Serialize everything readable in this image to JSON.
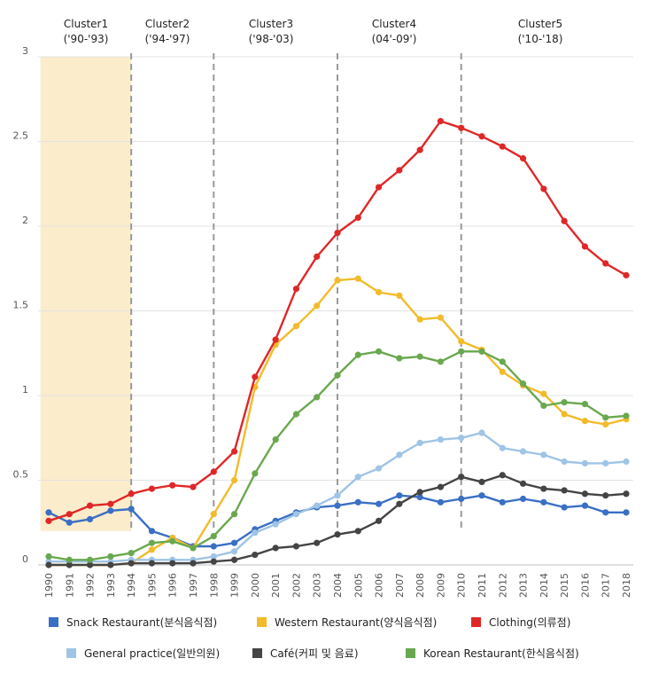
{
  "chart_data": {
    "type": "line",
    "title": "",
    "xlabel": "",
    "ylabel": "",
    "x": [
      "1990",
      "1991",
      "1992",
      "1993",
      "1994",
      "1995",
      "1996",
      "1997",
      "1998",
      "1999",
      "2000",
      "2001",
      "2002",
      "2003",
      "2004",
      "2005",
      "2006",
      "2007",
      "2008",
      "2009",
      "2010",
      "2011",
      "2012",
      "2013",
      "2014",
      "2015",
      "2016",
      "2017",
      "2018"
    ],
    "ylim": [
      0,
      3
    ],
    "yticks": [
      "0",
      "0.5",
      "1",
      "1.5",
      "2",
      "2.5",
      "3"
    ],
    "grid": true,
    "legend_position": "bottom",
    "clusters": [
      {
        "name": "Cluster1",
        "range": "('90-'93)",
        "start": "1990",
        "end": "1994",
        "highlight": true
      },
      {
        "name": "Cluster2",
        "range": "('94-'97)",
        "start": "1994",
        "end": "1998"
      },
      {
        "name": "Cluster3",
        "range": "('98-'03)",
        "start": "1998",
        "end": "2004"
      },
      {
        "name": "Cluster4",
        "range": "(04'-09')",
        "start": "2004",
        "end": "2010"
      },
      {
        "name": "Cluster5",
        "range": "('10-'18)",
        "start": "2010",
        "end": "2018"
      }
    ],
    "highlight_color": "#fbeccb",
    "series": [
      {
        "name": "Snack Restaurant(분식음식점)",
        "color": "#3a6fc4",
        "values": [
          0.31,
          0.25,
          0.27,
          0.32,
          0.33,
          0.2,
          0.16,
          0.11,
          0.11,
          0.13,
          0.21,
          0.26,
          0.31,
          0.34,
          0.35,
          0.37,
          0.36,
          0.41,
          0.4,
          0.37,
          0.39,
          0.41,
          0.37,
          0.39,
          0.37,
          0.34,
          0.35,
          0.31,
          0.31
        ]
      },
      {
        "name": "Western Restaurant(양식음식점)",
        "color": "#f2bb2a",
        "values": [
          0.0,
          0.0,
          0.0,
          0.0,
          0.01,
          0.09,
          0.16,
          0.1,
          0.3,
          0.5,
          1.05,
          1.3,
          1.41,
          1.53,
          1.68,
          1.69,
          1.61,
          1.59,
          1.45,
          1.46,
          1.32,
          1.27,
          1.14,
          1.06,
          1.01,
          0.89,
          0.85,
          0.83,
          0.86
        ]
      },
      {
        "name": "Clothing(의류점)",
        "color": "#e02727",
        "values": [
          0.26,
          0.3,
          0.35,
          0.36,
          0.42,
          0.45,
          0.47,
          0.46,
          0.55,
          0.67,
          1.11,
          1.33,
          1.63,
          1.82,
          1.96,
          2.05,
          2.23,
          2.33,
          2.45,
          2.62,
          2.58,
          2.53,
          2.47,
          2.4,
          2.22,
          2.03,
          1.88,
          1.78,
          1.71
        ]
      },
      {
        "name": "General practice(일반의원)",
        "color": "#9fc4e6",
        "values": [
          0.02,
          0.02,
          0.02,
          0.02,
          0.03,
          0.03,
          0.03,
          0.03,
          0.05,
          0.08,
          0.19,
          0.24,
          0.3,
          0.35,
          0.41,
          0.52,
          0.57,
          0.65,
          0.72,
          0.74,
          0.75,
          0.78,
          0.69,
          0.67,
          0.65,
          0.61,
          0.6,
          0.6,
          0.61
        ]
      },
      {
        "name": "Café(커피 및 음료)",
        "color": "#444444",
        "values": [
          0.0,
          0.0,
          0.0,
          0.0,
          0.01,
          0.01,
          0.01,
          0.01,
          0.02,
          0.03,
          0.06,
          0.1,
          0.11,
          0.13,
          0.18,
          0.2,
          0.26,
          0.36,
          0.43,
          0.46,
          0.52,
          0.49,
          0.53,
          0.48,
          0.45,
          0.44,
          0.42,
          0.41,
          0.42
        ]
      },
      {
        "name": "Korean Restaurant(한식음식점)",
        "color": "#6aa84f",
        "values": [
          0.05,
          0.03,
          0.03,
          0.05,
          0.07,
          0.13,
          0.14,
          0.1,
          0.17,
          0.3,
          0.54,
          0.74,
          0.89,
          0.99,
          1.12,
          1.24,
          1.26,
          1.22,
          1.23,
          1.2,
          1.26,
          1.26,
          1.2,
          1.07,
          0.94,
          0.96,
          0.95,
          0.87,
          0.88
        ]
      }
    ]
  }
}
